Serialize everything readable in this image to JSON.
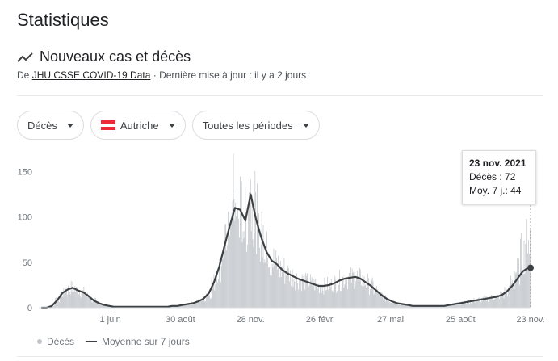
{
  "page": {
    "title": "Statistiques"
  },
  "section": {
    "title": "Nouveaux cas et décès",
    "icon": "trending-line-icon",
    "source_prefix": "De ",
    "source_link": "JHU CSSE COVID-19 Data",
    "source_suffix": " · Dernière mise à jour : il y a 2 jours"
  },
  "filters": {
    "metric": "Décès",
    "country": "Autriche",
    "country_flag_colors": [
      "#ed2939",
      "#ffffff",
      "#ed2939"
    ],
    "period": "Toutes les périodes"
  },
  "tooltip": {
    "date": "23 nov. 2021",
    "daily": "Décès : 72",
    "avg": "Moy. 7 j.: 44"
  },
  "legend": {
    "daily": "Décès",
    "avg": "Moyenne sur 7 jours"
  },
  "chart_data": {
    "type": "bar",
    "x_start": "2020-03-01",
    "x_end": "2021-11-23",
    "ylim": [
      0,
      170
    ],
    "yticks": [
      0,
      50,
      100,
      150
    ],
    "xtick_labels": [
      {
        "label": "1 juin",
        "date": "2020-06-01"
      },
      {
        "label": "30 août",
        "date": "2020-08-30"
      },
      {
        "label": "28 nov.",
        "date": "2020-11-28"
      },
      {
        "label": "26 févr.",
        "date": "2021-02-26"
      },
      {
        "label": "27 mai",
        "date": "2021-05-27"
      },
      {
        "label": "25 août",
        "date": "2021-08-25"
      },
      {
        "label": "23 nov.",
        "date": "2021-11-23"
      }
    ],
    "grid": false,
    "legend_position": "bottom-left",
    "colors": {
      "bars": "#bdc1c6",
      "avg_line": "#3c4043",
      "marker_line": "#9aa0a6"
    },
    "series": [
      {
        "name": "Décès",
        "kind": "bar",
        "values_note_weekly": "daily values approximated per week",
        "weekly_values": [
          0,
          0,
          2,
          8,
          16,
          20,
          22,
          19,
          17,
          13,
          8,
          5,
          3,
          2,
          1,
          1,
          1,
          1,
          1,
          1,
          1,
          1,
          1,
          1,
          1,
          2,
          2,
          3,
          4,
          5,
          7,
          10,
          16,
          28,
          45,
          68,
          90,
          110,
          108,
          96,
          125,
          98,
          78,
          62,
          52,
          48,
          42,
          38,
          35,
          32,
          30,
          28,
          26,
          24,
          24,
          25,
          27,
          30,
          32,
          33,
          34,
          32,
          28,
          24,
          19,
          14,
          10,
          7,
          5,
          4,
          3,
          2,
          2,
          2,
          2,
          2,
          2,
          2,
          3,
          4,
          5,
          6,
          7,
          8,
          9,
          10,
          11,
          12,
          14,
          18,
          28,
          40,
          60,
          72
        ]
      },
      {
        "name": "Moyenne sur 7 jours",
        "kind": "line",
        "weekly_values": [
          0,
          0,
          2,
          8,
          16,
          20,
          22,
          19,
          17,
          13,
          8,
          5,
          3,
          2,
          1,
          1,
          1,
          1,
          1,
          1,
          1,
          1,
          1,
          1,
          1,
          2,
          2,
          3,
          4,
          5,
          7,
          10,
          16,
          28,
          45,
          68,
          90,
          110,
          108,
          96,
          125,
          98,
          78,
          62,
          52,
          48,
          42,
          38,
          35,
          32,
          30,
          28,
          26,
          24,
          24,
          25,
          27,
          30,
          32,
          33,
          34,
          32,
          28,
          24,
          19,
          14,
          10,
          7,
          5,
          4,
          3,
          2,
          2,
          2,
          2,
          2,
          2,
          2,
          3,
          4,
          5,
          6,
          7,
          8,
          9,
          10,
          11,
          12,
          14,
          18,
          24,
          32,
          40,
          44
        ]
      }
    ]
  }
}
